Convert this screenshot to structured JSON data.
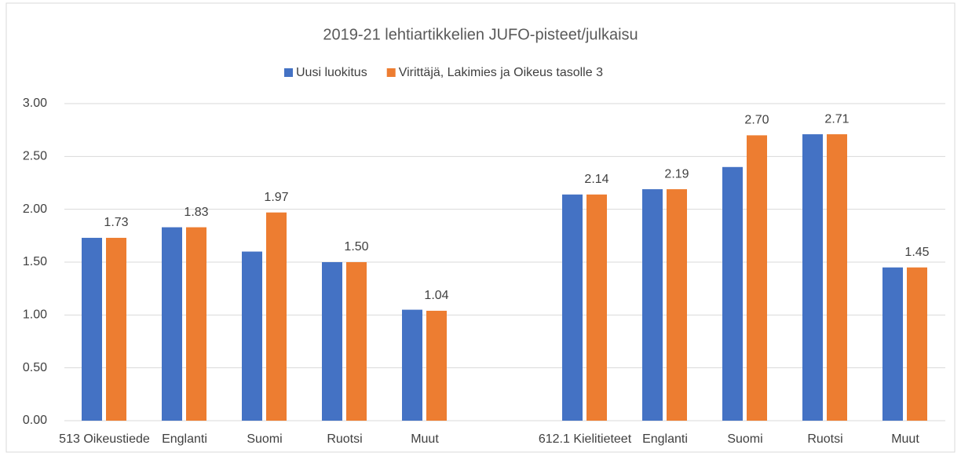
{
  "chart_data": {
    "type": "bar",
    "title": "2019-21 lehtiartikkelien JUFO-pisteet/julkaisu",
    "categories": [
      "513 Oikeustiede",
      "Englanti",
      "Suomi",
      "Ruotsi",
      "Muut",
      null,
      "612.1 Kielitieteet",
      "Englanti",
      "Suomi",
      "Ruotsi",
      "Muut"
    ],
    "series": [
      {
        "name": "Uusi luokitus",
        "color": "#4472c4",
        "values": [
          1.73,
          1.83,
          1.6,
          1.5,
          1.05,
          null,
          2.14,
          2.19,
          2.4,
          2.71,
          1.45
        ]
      },
      {
        "name": "Virittäjä, Lakimies ja Oikeus tasolle 3",
        "color": "#ed7d31",
        "values": [
          1.73,
          1.83,
          1.97,
          1.5,
          1.04,
          null,
          2.14,
          2.19,
          2.7,
          2.71,
          1.45
        ],
        "value_labels": [
          "1.73",
          "1.83",
          "1.97",
          "1.50",
          "1.04",
          null,
          "2.14",
          "2.19",
          "2.70",
          "2.71",
          "1.45"
        ]
      }
    ],
    "ylim": [
      0,
      3
    ],
    "yticks": [
      {
        "value": 0,
        "label": "0.00"
      },
      {
        "value": 0.5,
        "label": "0.50"
      },
      {
        "value": 1,
        "label": "1.00"
      },
      {
        "value": 1.5,
        "label": "1.50"
      },
      {
        "value": 2,
        "label": "2.00"
      },
      {
        "value": 2.5,
        "label": "2.50"
      },
      {
        "value": 3,
        "label": "3.00"
      }
    ],
    "grid": true,
    "legend": "top"
  }
}
